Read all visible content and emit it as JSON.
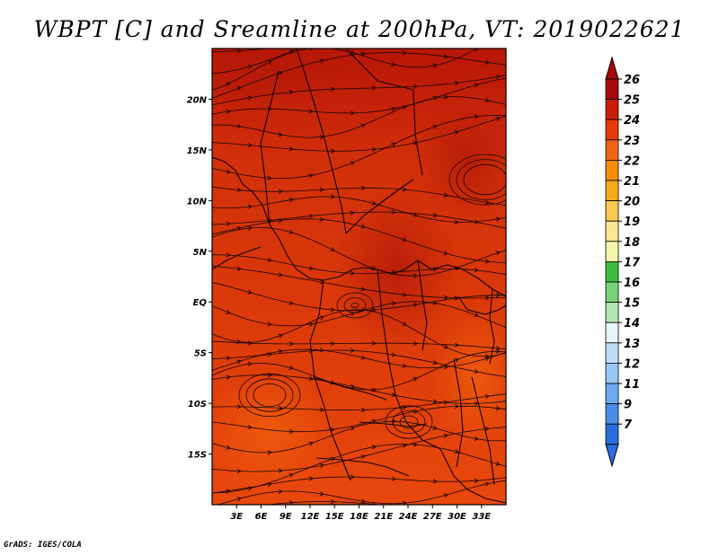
{
  "title": "WBPT [C] and Sreamline at 200hPa, VT: 2019022621",
  "credit": "GrADS: IGES/COLA",
  "map": {
    "lon_range": [
      0,
      36
    ],
    "lat_range": [
      -20,
      25
    ],
    "lat_ticks": [
      {
        "value": 20,
        "label": "20N"
      },
      {
        "value": 15,
        "label": "15N"
      },
      {
        "value": 10,
        "label": "10N"
      },
      {
        "value": 5,
        "label": "5N"
      },
      {
        "value": 0,
        "label": "EQ"
      },
      {
        "value": -5,
        "label": "5S"
      },
      {
        "value": -10,
        "label": "10S"
      },
      {
        "value": -15,
        "label": "15S"
      }
    ],
    "lon_ticks": [
      {
        "value": 3,
        "label": "3E"
      },
      {
        "value": 6,
        "label": "6E"
      },
      {
        "value": 9,
        "label": "9E"
      },
      {
        "value": 12,
        "label": "12E"
      },
      {
        "value": 15,
        "label": "15E"
      },
      {
        "value": 18,
        "label": "18E"
      },
      {
        "value": 21,
        "label": "21E"
      },
      {
        "value": 24,
        "label": "24E"
      },
      {
        "value": 27,
        "label": "27E"
      },
      {
        "value": 30,
        "label": "30E"
      },
      {
        "value": 33,
        "label": "33E"
      }
    ]
  },
  "colorbar": {
    "labels": [
      "26",
      "25",
      "24",
      "23",
      "22",
      "21",
      "20",
      "19",
      "18",
      "17",
      "16",
      "15",
      "14",
      "13",
      "12",
      "11",
      "9",
      "7"
    ],
    "colors": [
      "#a50a0a",
      "#c81e0a",
      "#e63c0a",
      "#f06414",
      "#f58c0a",
      "#f5aa1e",
      "#fac850",
      "#fae68c",
      "#f5f5aa",
      "#3cbe3c",
      "#78d278",
      "#b4e6b4",
      "#e6f5f5",
      "#bedcf5",
      "#96c8f5",
      "#6eaaf0",
      "#4b8ceb",
      "#286ee1"
    ],
    "top_arrow_color": "#a50a0a",
    "bottom_arrow_color": "#286ee1"
  }
}
